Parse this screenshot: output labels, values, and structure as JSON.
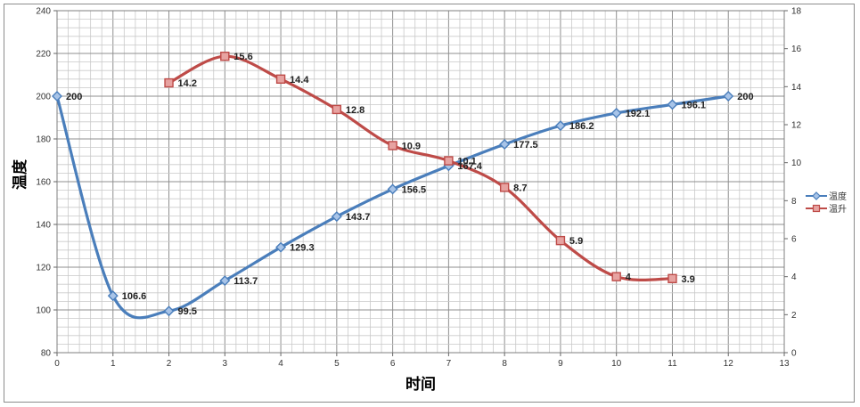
{
  "chart_data": {
    "type": "line",
    "xlabel": "时间",
    "ylabel": "温度",
    "xlim": [
      0,
      13
    ],
    "ylim": [
      80,
      240
    ],
    "y2lim": [
      0,
      18
    ],
    "x_ticks": [
      0,
      1,
      2,
      3,
      4,
      5,
      6,
      7,
      8,
      9,
      10,
      11,
      12,
      13
    ],
    "y_ticks": [
      80,
      100,
      120,
      140,
      160,
      180,
      200,
      220,
      240
    ],
    "y2_ticks": [
      0,
      2,
      4,
      6,
      8,
      10,
      12,
      14,
      16,
      18
    ],
    "grid": true,
    "legend_position": "right",
    "series": [
      {
        "name": "温度",
        "axis": "left",
        "color": "#4a7ebb",
        "marker": "diamond",
        "x": [
          0,
          1,
          2,
          3,
          4,
          5,
          6,
          7,
          8,
          9,
          10,
          11,
          12
        ],
        "values": [
          200,
          106.6,
          99.5,
          113.7,
          129.3,
          143.7,
          156.5,
          167.4,
          177.5,
          186.2,
          192.1,
          196.1,
          200
        ],
        "labels": [
          "200",
          "106.6",
          "99.5",
          "113.7",
          "129.3",
          "143.7",
          "156.5",
          "167.4",
          "177.5",
          "186.2",
          "192.1",
          "196.1",
          "200"
        ]
      },
      {
        "name": "温升",
        "axis": "right",
        "color": "#be4b48",
        "marker": "square",
        "x": [
          2,
          3,
          4,
          5,
          6,
          7,
          8,
          9,
          10,
          11
        ],
        "values": [
          14.2,
          15.6,
          14.4,
          12.8,
          10.9,
          10.1,
          8.7,
          5.9,
          4,
          3.9
        ],
        "labels": [
          "14.2",
          "15.6",
          "14.4",
          "12.8",
          "10.9",
          "10.1",
          "8.7",
          "5.9",
          "4",
          "3.9"
        ]
      }
    ]
  }
}
